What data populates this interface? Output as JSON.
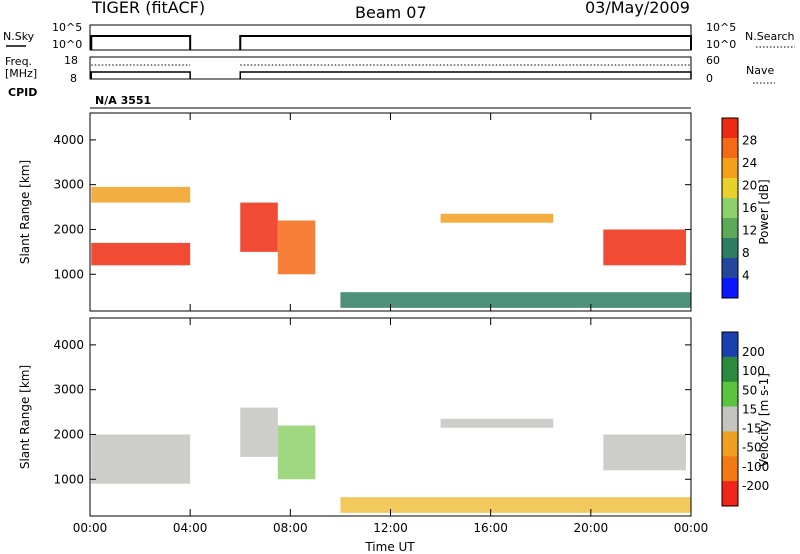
{
  "header": {
    "station": "TIGER (fitACF)",
    "beam": "Beam 07",
    "date": "03/May/2009"
  },
  "noise_panel": {
    "left_label": "N.Sky",
    "left_ticks": [
      "10^5",
      "10^0"
    ],
    "right_label": "N.Search",
    "right_ticks": [
      "10^5",
      "10^0"
    ]
  },
  "freq_panel": {
    "left_label_1": "Freq.",
    "left_label_2": "[MHz]",
    "left_ticks": [
      "18",
      "8"
    ],
    "right_label": "Nave",
    "right_ticks": [
      "60",
      "0"
    ]
  },
  "cpid": {
    "label": "CPID",
    "value": "N/A 3551"
  },
  "chart_data": [
    {
      "type": "heatmap",
      "name": "Power",
      "ylabel": "Slant Range [km]",
      "ylim": [
        180,
        4600
      ],
      "yticks": [
        "1000",
        "2000",
        "3000",
        "4000"
      ],
      "colorbar_label": "Power [dB]",
      "colorbar_ticks": [
        "4",
        "8",
        "12",
        "16",
        "20",
        "24",
        "28"
      ],
      "colorbar_colors": [
        "#0a17ff",
        "#24469b",
        "#2f7d63",
        "#5ea85a",
        "#8ed16a",
        "#e7d12a",
        "#f4a01a",
        "#f56a14",
        "#ee2b12"
      ],
      "regions": [
        {
          "t0": 0.05,
          "t1": 4.0,
          "r0": 1200,
          "r1": 1700,
          "color": "#ee2b12"
        },
        {
          "t0": 0.05,
          "t1": 4.0,
          "r0": 2600,
          "r1": 2950,
          "color": "#f0a020"
        },
        {
          "t0": 6.0,
          "t1": 7.5,
          "r0": 1500,
          "r1": 2600,
          "color": "#ee2b12"
        },
        {
          "t0": 7.5,
          "t1": 9.0,
          "r0": 1000,
          "r1": 2200,
          "color": "#f56a14"
        },
        {
          "t0": 14.0,
          "t1": 18.5,
          "r0": 2150,
          "r1": 2350,
          "color": "#f0a020"
        },
        {
          "t0": 20.5,
          "t1": 23.8,
          "r0": 1200,
          "r1": 2000,
          "color": "#ee2b12"
        },
        {
          "t0": 10.0,
          "t1": 24.0,
          "r0": 250,
          "r1": 600,
          "color": "#2f7d63"
        }
      ]
    },
    {
      "type": "heatmap",
      "name": "Velocity",
      "ylabel": "Slant Range [km]",
      "ylim": [
        180,
        4600
      ],
      "yticks": [
        "1000",
        "2000",
        "3000",
        "4000"
      ],
      "xlabel": "Time UT",
      "xticks": [
        "00:00",
        "04:00",
        "08:00",
        "12:00",
        "16:00",
        "20:00",
        "00:00"
      ],
      "xlim": [
        0,
        24
      ],
      "colorbar_label": "Velocity [m s-1]",
      "colorbar_ticks": [
        "200",
        "100",
        "50",
        "15",
        "-15",
        "-50",
        "-100",
        "-200"
      ],
      "colorbar_colors": [
        "#1a3fb0",
        "#2b8a3d",
        "#5bc33f",
        "#c4c4c0",
        "#f0a020",
        "#f27a14",
        "#f1251a"
      ],
      "regions": [
        {
          "t0": 0.05,
          "t1": 4.0,
          "r0": 900,
          "r1": 2000,
          "color": "#c4c4c0"
        },
        {
          "t0": 6.0,
          "t1": 7.5,
          "r0": 1500,
          "r1": 2600,
          "color": "#c4c4c0"
        },
        {
          "t0": 7.5,
          "t1": 9.0,
          "r0": 1000,
          "r1": 2200,
          "color": "#8ed16a"
        },
        {
          "t0": 14.0,
          "t1": 18.5,
          "r0": 2150,
          "r1": 2350,
          "color": "#c4c4c0"
        },
        {
          "t0": 20.5,
          "t1": 23.8,
          "r0": 1200,
          "r1": 2000,
          "color": "#c4c4c0"
        },
        {
          "t0": 10.0,
          "t1": 24.0,
          "r0": 250,
          "r1": 600,
          "color": "#f0c040"
        }
      ]
    }
  ]
}
